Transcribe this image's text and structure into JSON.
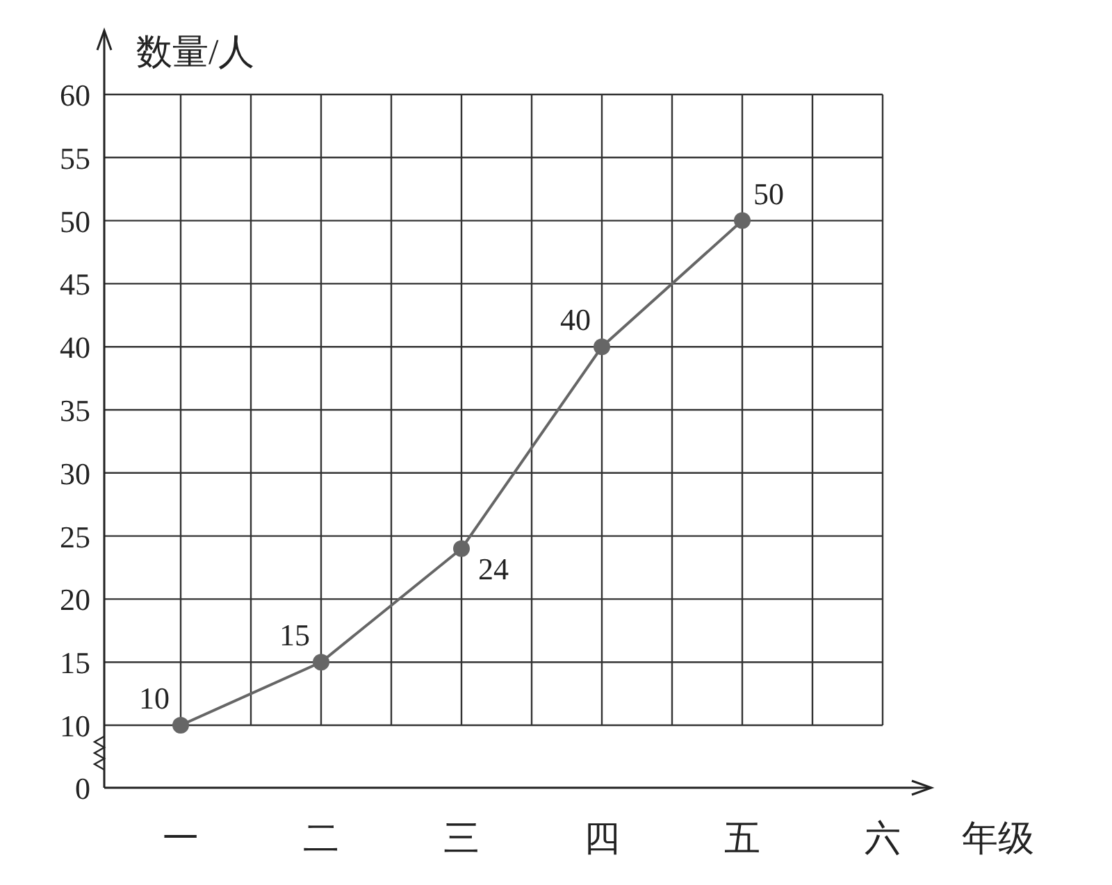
{
  "chart_data": {
    "type": "line",
    "xlabel": "年级",
    "ylabel": "数量/人",
    "categories": [
      "一",
      "二",
      "三",
      "四",
      "五",
      "六"
    ],
    "values": [
      10,
      15,
      24,
      40,
      50,
      null
    ],
    "color": "#666666",
    "marker": "circle",
    "data_labels": true,
    "grid": true,
    "ylim": [
      10,
      60
    ],
    "yticks": [
      10,
      15,
      20,
      25,
      30,
      35,
      40,
      45,
      50,
      55,
      60
    ],
    "annotations": [
      "0"
    ]
  }
}
